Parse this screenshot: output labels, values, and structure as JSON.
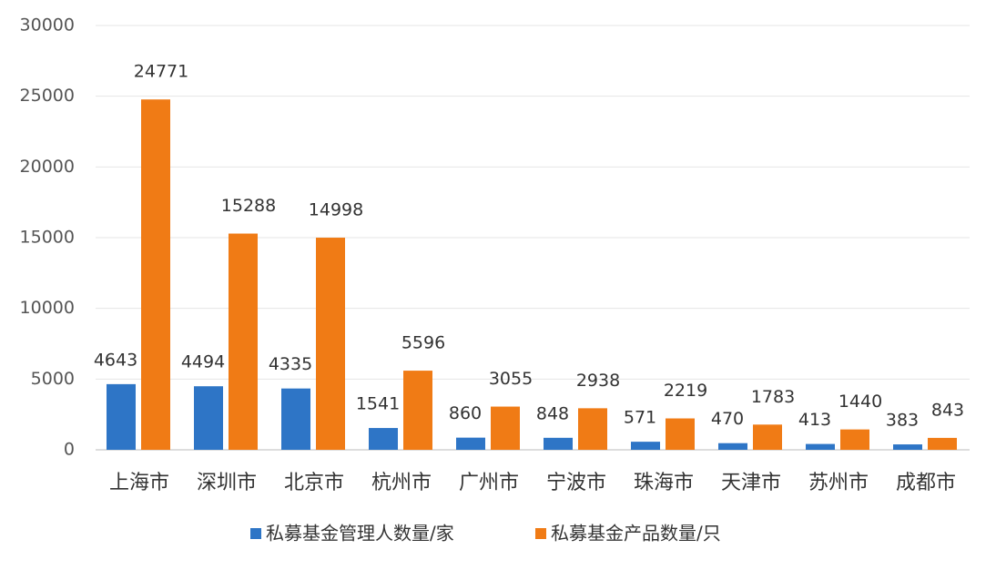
{
  "chart_data": {
    "type": "bar",
    "categories": [
      "上海市",
      "深圳市",
      "北京市",
      "杭州市",
      "广州市",
      "宁波市",
      "珠海市",
      "天津市",
      "苏州市",
      "成都市"
    ],
    "series": [
      {
        "name": "私募基金管理人数量/家",
        "color": "#2e75c6",
        "values": [
          4643,
          4494,
          4335,
          1541,
          860,
          848,
          571,
          470,
          413,
          383
        ]
      },
      {
        "name": "私募基金产品数量/只",
        "color": "#f07b15",
        "values": [
          24771,
          15288,
          14998,
          5596,
          3055,
          2938,
          2219,
          1783,
          1440,
          843
        ]
      }
    ],
    "ylim": [
      0,
      30000
    ],
    "yticks": [
      0,
      5000,
      10000,
      15000,
      20000,
      25000,
      30000
    ],
    "grid": true,
    "legend": "bottom"
  }
}
